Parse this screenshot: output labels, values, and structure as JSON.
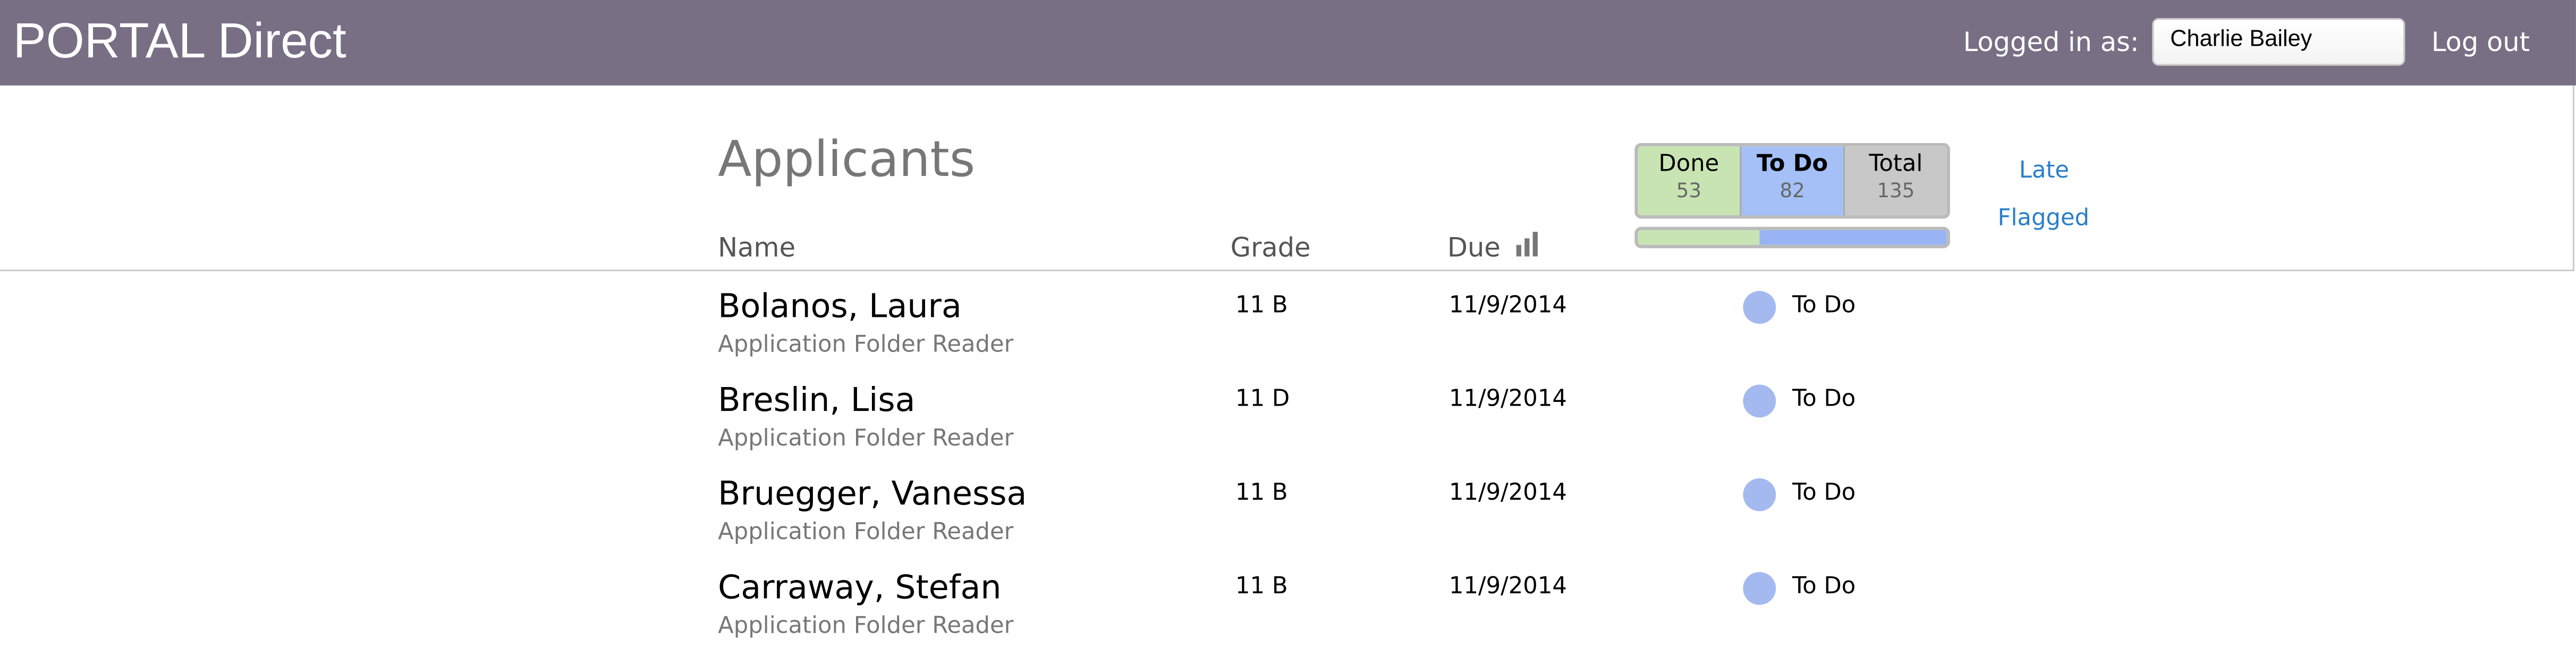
{
  "header": {
    "title": "PORTAL Direct",
    "logged_in_label": "Logged in as:",
    "user": "Charlie Bailey",
    "logout": "Log out"
  },
  "page": {
    "title": "Applicants"
  },
  "columns": {
    "name": "Name",
    "grade": "Grade",
    "due": "Due",
    "due_icon": "bar-chart-icon"
  },
  "stats": {
    "done": {
      "label": "Done",
      "count": "53"
    },
    "todo": {
      "label": "To Do",
      "count": "82"
    },
    "total": {
      "label": "Total",
      "count": "135"
    },
    "progress_done_fraction": 0.393
  },
  "filters": {
    "late": "Late",
    "flagged": "Flagged"
  },
  "colors": {
    "header": "#786f84",
    "done": "#c9e4b3",
    "todo": "#a4c0f7",
    "total": "#c8c8c8",
    "link": "#2a7fc9",
    "status_dot": "#a4b9f0"
  },
  "rows": [
    {
      "name": "Bolanos, Laura",
      "role": "Application Folder Reader",
      "grade": "11 B",
      "due": "11/9/2014",
      "status": "To Do"
    },
    {
      "name": "Breslin, Lisa",
      "role": "Application Folder Reader",
      "grade": "11 D",
      "due": "11/9/2014",
      "status": "To Do"
    },
    {
      "name": "Bruegger, Vanessa",
      "role": "Application Folder Reader",
      "grade": "11 B",
      "due": "11/9/2014",
      "status": "To Do"
    },
    {
      "name": "Carraway, Stefan",
      "role": "Application Folder Reader",
      "grade": "11 B",
      "due": "11/9/2014",
      "status": "To Do"
    }
  ]
}
